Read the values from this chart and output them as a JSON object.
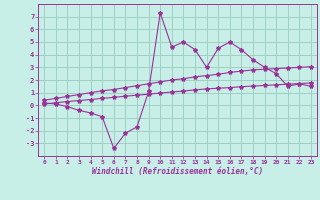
{
  "xlabel": "Windchill (Refroidissement éolien,°C)",
  "background_color": "#c8eee8",
  "grid_color": "#99ccbb",
  "line_color": "#993399",
  "x_data": [
    0,
    1,
    2,
    3,
    4,
    5,
    6,
    7,
    8,
    9,
    10,
    11,
    12,
    13,
    14,
    15,
    16,
    17,
    18,
    19,
    20,
    21,
    22,
    23
  ],
  "y_main": [
    0.2,
    0.1,
    -0.1,
    -0.4,
    -0.6,
    -0.9,
    -3.4,
    -2.2,
    -1.7,
    1.1,
    7.3,
    4.6,
    5.0,
    4.4,
    3.0,
    4.5,
    5.0,
    4.4,
    3.6,
    3.0,
    2.5,
    1.5,
    1.7,
    1.5
  ],
  "y_upper": [
    0.4,
    0.55,
    0.7,
    0.85,
    1.0,
    1.15,
    1.25,
    1.4,
    1.55,
    1.7,
    1.85,
    2.0,
    2.1,
    2.25,
    2.35,
    2.45,
    2.6,
    2.7,
    2.8,
    2.85,
    2.9,
    2.95,
    3.0,
    3.05
  ],
  "y_lower": [
    0.1,
    0.2,
    0.3,
    0.38,
    0.46,
    0.55,
    0.63,
    0.72,
    0.8,
    0.88,
    0.97,
    1.05,
    1.13,
    1.22,
    1.3,
    1.35,
    1.4,
    1.47,
    1.52,
    1.57,
    1.62,
    1.67,
    1.72,
    1.77
  ],
  "ylim": [
    -4,
    8
  ],
  "xlim": [
    -0.5,
    23.5
  ],
  "yticks": [
    -3,
    -2,
    -1,
    0,
    1,
    2,
    3,
    4,
    5,
    6,
    7
  ],
  "xticks": [
    0,
    1,
    2,
    3,
    4,
    5,
    6,
    7,
    8,
    9,
    10,
    11,
    12,
    13,
    14,
    15,
    16,
    17,
    18,
    19,
    20,
    21,
    22,
    23
  ]
}
